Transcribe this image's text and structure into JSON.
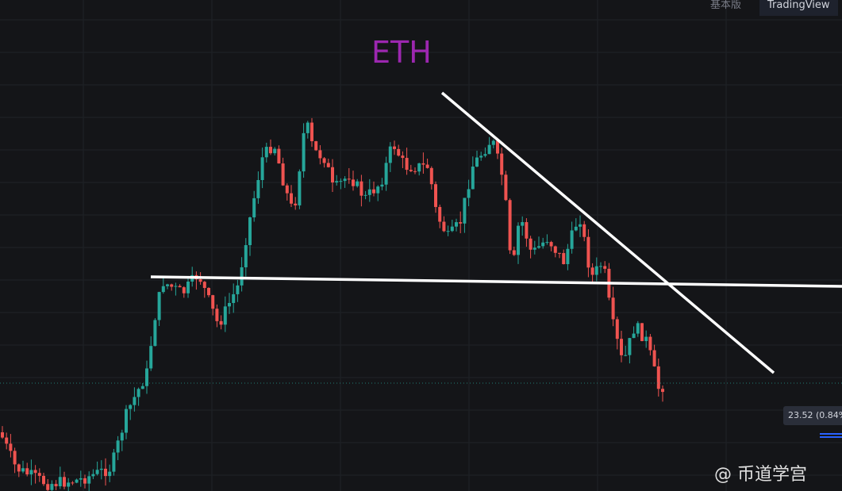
{
  "tabs": [
    "基本版",
    "TradingView"
  ],
  "title": "ETH",
  "price_label": "23.52 (0.84%",
  "watermark": "@ 币道学宫"
}
